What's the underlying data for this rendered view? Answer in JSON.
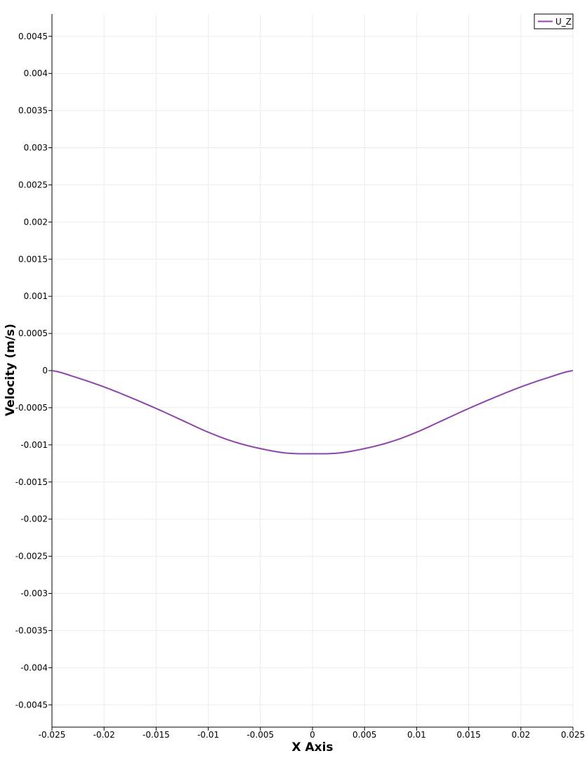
{
  "chart_data": {
    "type": "line",
    "title": "",
    "xlabel": "X Axis",
    "ylabel": "Velocity (m/s)",
    "xlim": [
      -0.025,
      0.025
    ],
    "ylim": [
      -0.0048,
      0.0048
    ],
    "grid": true,
    "legend_position": "top-right",
    "x_ticks": [
      {
        "value": -0.025,
        "label": "-0.025"
      },
      {
        "value": -0.02,
        "label": "-0.02"
      },
      {
        "value": -0.015,
        "label": "-0.015"
      },
      {
        "value": -0.01,
        "label": "-0.01"
      },
      {
        "value": -0.005,
        "label": "-0.005"
      },
      {
        "value": 0,
        "label": "0"
      },
      {
        "value": 0.005,
        "label": "0.005"
      },
      {
        "value": 0.01,
        "label": "0.01"
      },
      {
        "value": 0.015,
        "label": "0.015"
      },
      {
        "value": 0.02,
        "label": "0.02"
      },
      {
        "value": 0.025,
        "label": "0.025"
      }
    ],
    "y_ticks": [
      {
        "value": 0.0045,
        "label": "0.0045"
      },
      {
        "value": 0.004,
        "label": "0.004"
      },
      {
        "value": 0.0035,
        "label": "0.0035"
      },
      {
        "value": 0.003,
        "label": "0.003"
      },
      {
        "value": 0.0025,
        "label": "0.0025"
      },
      {
        "value": 0.002,
        "label": "0.002"
      },
      {
        "value": 0.0015,
        "label": "0.0015"
      },
      {
        "value": 0.001,
        "label": "0.001"
      },
      {
        "value": 0.0005,
        "label": "0.0005"
      },
      {
        "value": 0,
        "label": "0"
      },
      {
        "value": -0.0005,
        "label": "-0.0005"
      },
      {
        "value": -0.001,
        "label": "-0.001"
      },
      {
        "value": -0.0015,
        "label": "-0.0015"
      },
      {
        "value": -0.002,
        "label": "-0.002"
      },
      {
        "value": -0.0025,
        "label": "-0.0025"
      },
      {
        "value": -0.003,
        "label": "-0.003"
      },
      {
        "value": -0.0035,
        "label": "-0.0035"
      },
      {
        "value": -0.004,
        "label": "-0.004"
      },
      {
        "value": -0.0045,
        "label": "-0.0045"
      }
    ],
    "series": [
      {
        "name": "U_Z",
        "color": "#8e44ad",
        "x": [
          -0.025,
          -0.0225,
          -0.02,
          -0.0175,
          -0.015,
          -0.0125,
          -0.01,
          -0.0075,
          -0.005,
          -0.0025,
          0,
          0.0025,
          0.005,
          0.0075,
          0.01,
          0.0125,
          0.015,
          0.0175,
          0.02,
          0.0225,
          0.025
        ],
        "y": [
          0,
          -0.0001,
          -0.00022,
          -0.00036,
          -0.00051,
          -0.00067,
          -0.00083,
          -0.00096,
          -0.00105,
          -0.00111,
          -0.00112,
          -0.00111,
          -0.00105,
          -0.00096,
          -0.00083,
          -0.00067,
          -0.00051,
          -0.00036,
          -0.00022,
          -0.0001,
          0
        ]
      }
    ]
  },
  "colors": {
    "background": "#ffffff",
    "grid": "#ebebeb",
    "axis": "#000000"
  }
}
